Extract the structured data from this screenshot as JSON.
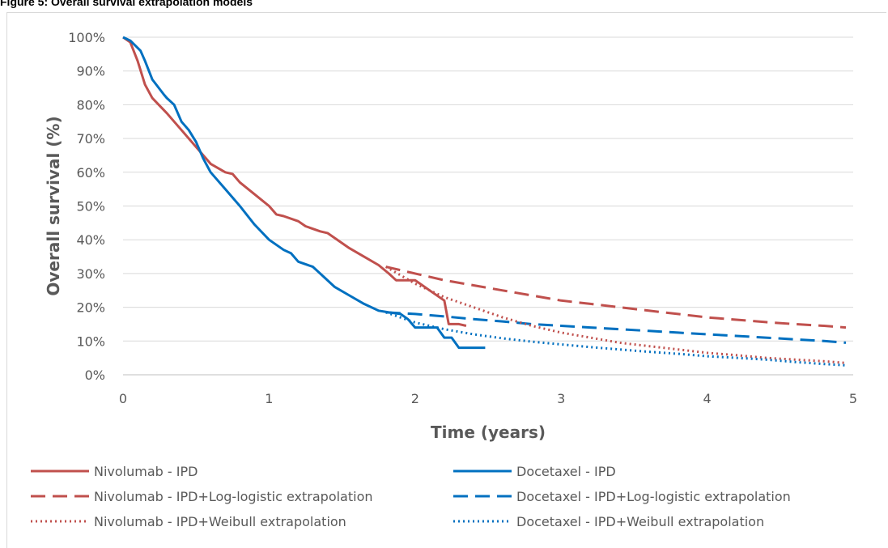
{
  "figure_title": "Figure 5: Overall survival extrapolation models",
  "colors": {
    "nivolumab": "#c0504d",
    "docetaxel": "#0070c0",
    "grid": "#d9d9d9",
    "text": "#595959"
  },
  "chart_data": {
    "type": "line",
    "title": "Figure 5: Overall survival extrapolation models",
    "xlabel": "Time (years)",
    "ylabel": "Overall survival (%)",
    "xlim": [
      0,
      5
    ],
    "ylim": [
      0,
      100
    ],
    "x_ticks": [
      "0",
      "1",
      "2",
      "3",
      "4",
      "5"
    ],
    "y_ticks": [
      "0%",
      "10%",
      "20%",
      "30%",
      "40%",
      "50%",
      "60%",
      "70%",
      "80%",
      "90%",
      "100%"
    ],
    "grid": "horizontal",
    "legend_position": "bottom",
    "series": [
      {
        "name": "Nivolumab - IPD",
        "style": "solid",
        "color": "#c0504d",
        "x": [
          0,
          0.05,
          0.1,
          0.15,
          0.2,
          0.3,
          0.4,
          0.5,
          0.6,
          0.7,
          0.75,
          0.8,
          0.9,
          1.0,
          1.05,
          1.1,
          1.2,
          1.25,
          1.35,
          1.4,
          1.45,
          1.55,
          1.65,
          1.75,
          1.82,
          1.87,
          1.92,
          2.0,
          2.05,
          2.1,
          2.2,
          2.23,
          2.3,
          2.35
        ],
        "y": [
          100,
          98.5,
          93,
          86,
          82,
          77.5,
          72.5,
          67.5,
          62.5,
          60,
          59.5,
          57,
          53.5,
          50,
          47.5,
          47,
          45.5,
          44,
          42.5,
          42,
          40.5,
          37.5,
          35,
          32.5,
          30,
          28,
          28,
          28,
          26.5,
          25,
          22,
          15,
          15,
          14.5
        ]
      },
      {
        "name": "Docetaxel - IPD",
        "style": "solid",
        "color": "#0070c0",
        "x": [
          0,
          0.05,
          0.12,
          0.15,
          0.2,
          0.28,
          0.3,
          0.35,
          0.4,
          0.45,
          0.5,
          0.55,
          0.6,
          0.7,
          0.8,
          0.9,
          1.0,
          1.1,
          1.15,
          1.2,
          1.3,
          1.35,
          1.45,
          1.55,
          1.65,
          1.75,
          1.82,
          1.9,
          1.95,
          2.0,
          2.1,
          2.15,
          2.2,
          2.25,
          2.3,
          2.48
        ],
        "y": [
          100,
          99,
          96,
          93,
          87.5,
          83,
          82,
          80,
          75,
          72.5,
          69,
          64,
          60,
          55,
          50,
          44.5,
          40,
          37,
          36,
          33.5,
          32,
          30,
          26,
          23.5,
          21,
          19,
          18.5,
          18,
          16.5,
          14,
          14,
          14,
          11,
          11,
          8,
          8
        ]
      },
      {
        "name": "Nivolumab - IPD+Log-logistic extrapolation",
        "style": "dashed",
        "color": "#c0504d",
        "x": [
          1.8,
          2.0,
          2.2,
          2.4,
          2.6,
          2.8,
          3.0,
          3.2,
          3.4,
          3.6,
          3.8,
          4.0,
          4.2,
          4.4,
          4.6,
          4.8,
          4.95
        ],
        "y": [
          32,
          30,
          28,
          26.5,
          25,
          23.5,
          22,
          21,
          20,
          19,
          18,
          17,
          16.3,
          15.6,
          15,
          14.5,
          14
        ]
      },
      {
        "name": "Docetaxel - IPD+Log-logistic extrapolation",
        "style": "dashed",
        "color": "#0070c0",
        "x": [
          1.8,
          2.0,
          2.2,
          2.4,
          2.6,
          2.8,
          3.0,
          3.2,
          3.4,
          3.6,
          3.8,
          4.0,
          4.2,
          4.4,
          4.6,
          4.8,
          4.95
        ],
        "y": [
          18.5,
          18,
          17.3,
          16.5,
          15.8,
          15,
          14.5,
          14,
          13.5,
          13,
          12.5,
          12,
          11.5,
          11,
          10.5,
          10,
          9.5
        ]
      },
      {
        "name": "Nivolumab - IPD+Weibull extrapolation",
        "style": "dotted",
        "color": "#c0504d",
        "x": [
          1.8,
          2.0,
          2.2,
          2.4,
          2.6,
          2.8,
          3.0,
          3.2,
          3.4,
          3.6,
          3.8,
          4.0,
          4.2,
          4.4,
          4.6,
          4.8,
          4.95
        ],
        "y": [
          32,
          27,
          23,
          20,
          17,
          14.5,
          12.5,
          11,
          9.5,
          8.5,
          7.5,
          6.5,
          5.8,
          5,
          4.5,
          4,
          3.5
        ]
      },
      {
        "name": "Docetaxel - IPD+Weibull extrapolation",
        "style": "dotted",
        "color": "#0070c0",
        "x": [
          1.8,
          2.0,
          2.2,
          2.4,
          2.6,
          2.8,
          3.0,
          3.2,
          3.4,
          3.6,
          3.8,
          4.0,
          4.2,
          4.4,
          4.6,
          4.8,
          4.95
        ],
        "y": [
          18.5,
          15.5,
          13.5,
          12,
          10.8,
          9.8,
          9,
          8.2,
          7.5,
          6.8,
          6.2,
          5.5,
          5,
          4.5,
          3.8,
          3.2,
          2.8
        ]
      }
    ]
  }
}
